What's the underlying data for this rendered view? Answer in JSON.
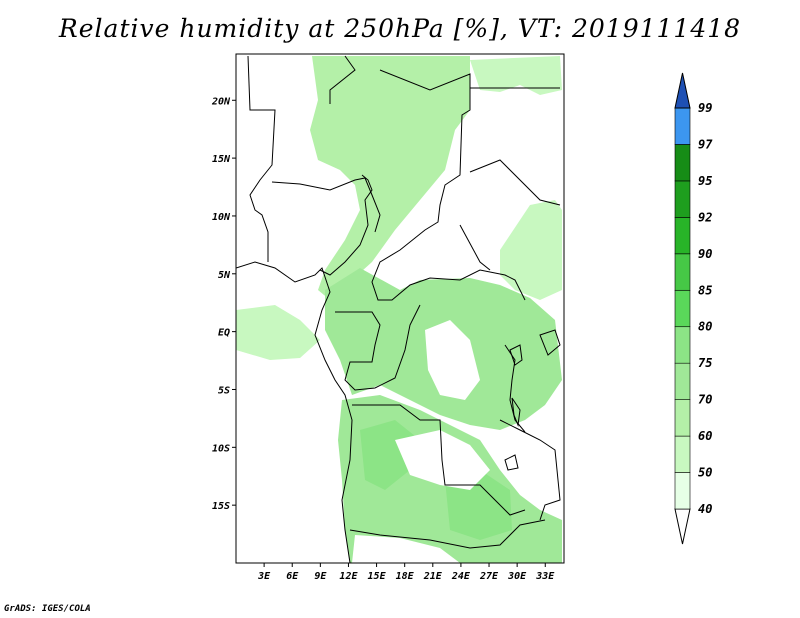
{
  "title": "Relative humidity at 250hPa [%], VT: 2019111418",
  "credit": "GrADS: IGES/COLA",
  "map": {
    "variable": "Relative humidity",
    "level": "250hPa",
    "units": "%",
    "valid_time": "2019111418",
    "lon_range": [
      0,
      35
    ],
    "lat_range": [
      -20,
      24
    ],
    "lat_ticks": [
      {
        "value": 20,
        "label": "20N"
      },
      {
        "value": 15,
        "label": "15N"
      },
      {
        "value": 10,
        "label": "10N"
      },
      {
        "value": 5,
        "label": "5N"
      },
      {
        "value": 0,
        "label": "EQ"
      },
      {
        "value": -5,
        "label": "5S"
      },
      {
        "value": -10,
        "label": "10S"
      },
      {
        "value": -15,
        "label": "15S"
      }
    ],
    "lon_ticks": [
      {
        "value": 3,
        "label": "3E"
      },
      {
        "value": 6,
        "label": "6E"
      },
      {
        "value": 9,
        "label": "9E"
      },
      {
        "value": 12,
        "label": "12E"
      },
      {
        "value": 15,
        "label": "15E"
      },
      {
        "value": 18,
        "label": "18E"
      },
      {
        "value": 21,
        "label": "21E"
      },
      {
        "value": 24,
        "label": "24E"
      },
      {
        "value": 27,
        "label": "27E"
      },
      {
        "value": 30,
        "label": "30E"
      },
      {
        "value": 33,
        "label": "33E"
      }
    ]
  },
  "colorbar": {
    "levels": [
      {
        "label": "40",
        "color": "#e6ffe6"
      },
      {
        "label": "50",
        "color": "#c8f8c0"
      },
      {
        "label": "60",
        "color": "#b4f0a8"
      },
      {
        "label": "70",
        "color": "#a0e898"
      },
      {
        "label": "75",
        "color": "#8ce486"
      },
      {
        "label": "80",
        "color": "#5ad85a"
      },
      {
        "label": "85",
        "color": "#46c846"
      },
      {
        "label": "90",
        "color": "#28b428"
      },
      {
        "label": "92",
        "color": "#1e9e1e"
      },
      {
        "label": "95",
        "color": "#168c16"
      },
      {
        "label": "97",
        "color": "#3c96f0"
      },
      {
        "label": "99",
        "color": "#1e6ed2"
      }
    ],
    "low_color": "#ffffff",
    "high_color": "#1e50b4"
  }
}
